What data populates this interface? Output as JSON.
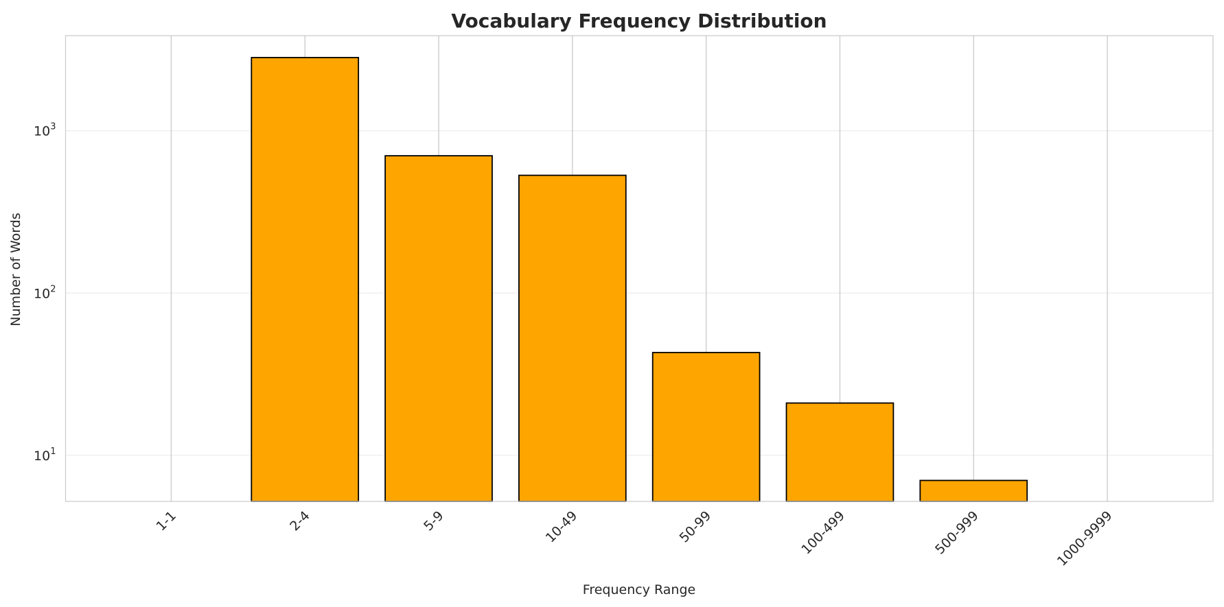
{
  "chart_data": {
    "type": "bar",
    "title": "Vocabulary Frequency Distribution",
    "xlabel": "Frequency Range",
    "ylabel": "Number of Words",
    "yscale": "log",
    "ylim": [
      5.2,
      3860
    ],
    "yticks": [
      {
        "value": 10,
        "base": "10",
        "exp": "1"
      },
      {
        "value": 100,
        "base": "10",
        "exp": "2"
      },
      {
        "value": 1000,
        "base": "10",
        "exp": "3"
      }
    ],
    "categories": [
      "1-1",
      "2-4",
      "5-9",
      "10-49",
      "50-99",
      "100-499",
      "500-999",
      "1000-9999"
    ],
    "values": [
      0,
      2830,
      702,
      532,
      43,
      21,
      7,
      0
    ],
    "bar_color": "#FFA500",
    "edge_color": "#000000",
    "grid": true
  }
}
